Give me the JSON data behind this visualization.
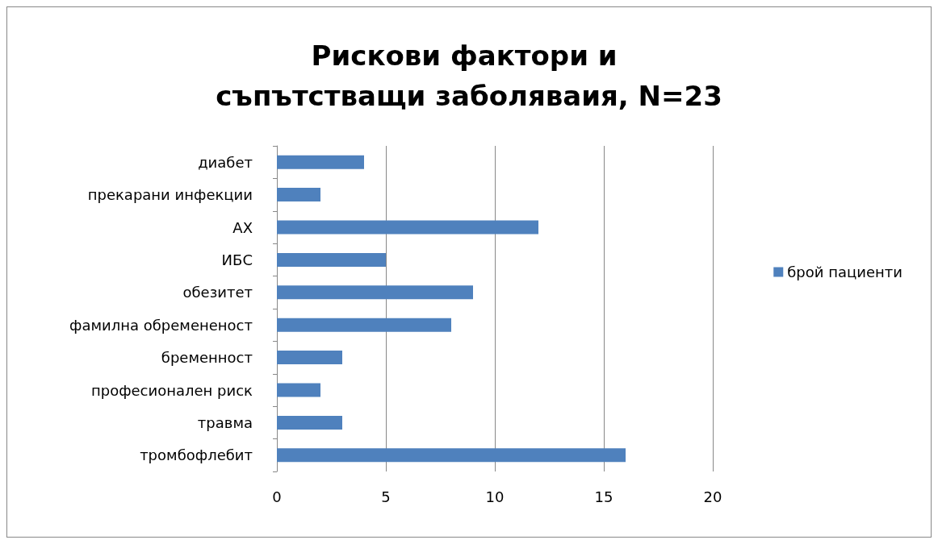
{
  "chart_data": {
    "type": "bar",
    "orientation": "horizontal",
    "title": "Рискови фактори и съпътстващи заболяваия, N=23",
    "categories": [
      "диабет",
      "прекарани инфекции",
      "АХ",
      "ИБС",
      "обезитет",
      "фамилна обремененост",
      "бременност",
      "професионален риск",
      "травма",
      "тромбофлебит"
    ],
    "series": [
      {
        "name": "брой пациенти",
        "color": "#4f81bd",
        "values": [
          4,
          2,
          12,
          5,
          9,
          8,
          3,
          2,
          3,
          16
        ]
      }
    ],
    "xlim": [
      0,
      20
    ],
    "xticks": [
      0,
      5,
      10,
      15,
      20
    ],
    "grid": "x",
    "legend": "right"
  }
}
